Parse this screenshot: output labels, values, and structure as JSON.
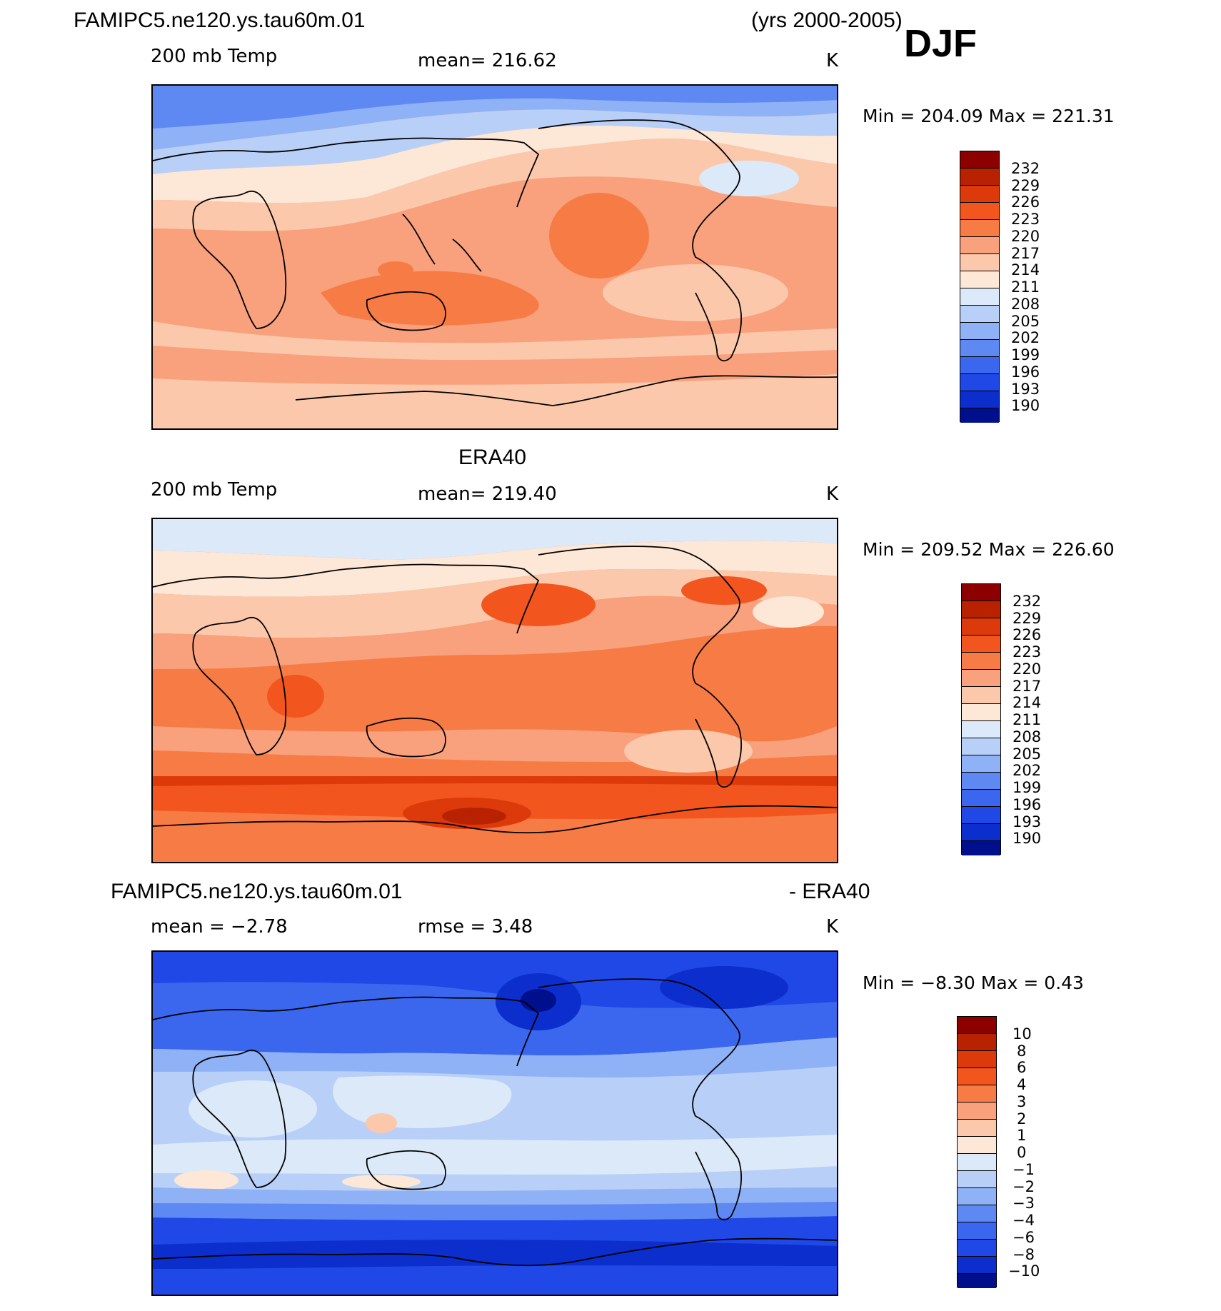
{
  "figure": {
    "case_title": "FAMIPC5.ne120.ys.tau60m.01",
    "years": "(yrs 2000-2005)",
    "season": "DJF"
  },
  "panels": [
    {
      "id": "model",
      "title": "",
      "variable": "200 mb Temp",
      "center_stat": "mean=  216.62",
      "units": "K",
      "minmax": "Min  =  204.09  Max  =  221.31",
      "colorbar_labels": [
        "232",
        "229",
        "226",
        "223",
        "220",
        "217",
        "214",
        "211",
        "208",
        "205",
        "202",
        "199",
        "196",
        "193",
        "190"
      ]
    },
    {
      "id": "obs",
      "title": "ERA40",
      "variable": "200 mb Temp",
      "center_stat": "mean=  219.40",
      "units": "K",
      "minmax": "Min  =  209.52  Max  =  226.60",
      "colorbar_labels": [
        "232",
        "229",
        "226",
        "223",
        "220",
        "217",
        "214",
        "211",
        "208",
        "205",
        "202",
        "199",
        "196",
        "193",
        "190"
      ]
    },
    {
      "id": "diff",
      "title_left": "FAMIPC5.ne120.ys.tau60m.01",
      "title_right": "- ERA40",
      "variable": "mean  =   −2.78",
      "center_stat": "rmse  =     3.48",
      "units": "K",
      "minmax": "Min  =    −8.30  Max  =     0.43",
      "colorbar_labels": [
        "10",
        "8",
        "6",
        "4",
        "3",
        "2",
        "1",
        "0",
        "−1",
        "−2",
        "−3",
        "−4",
        "−6",
        "−8",
        "−10"
      ]
    }
  ],
  "colors": {
    "scale": [
      "#8c0000",
      "#b82200",
      "#dc3a0a",
      "#f2561e",
      "#f77b45",
      "#f9a07c",
      "#fbc8ab",
      "#fde7d6",
      "#dce9f9",
      "#b8cff7",
      "#8fb1f5",
      "#5f89f2",
      "#3a67ee",
      "#1f48e6",
      "#0b2ecc",
      "#000f8c"
    ]
  }
}
